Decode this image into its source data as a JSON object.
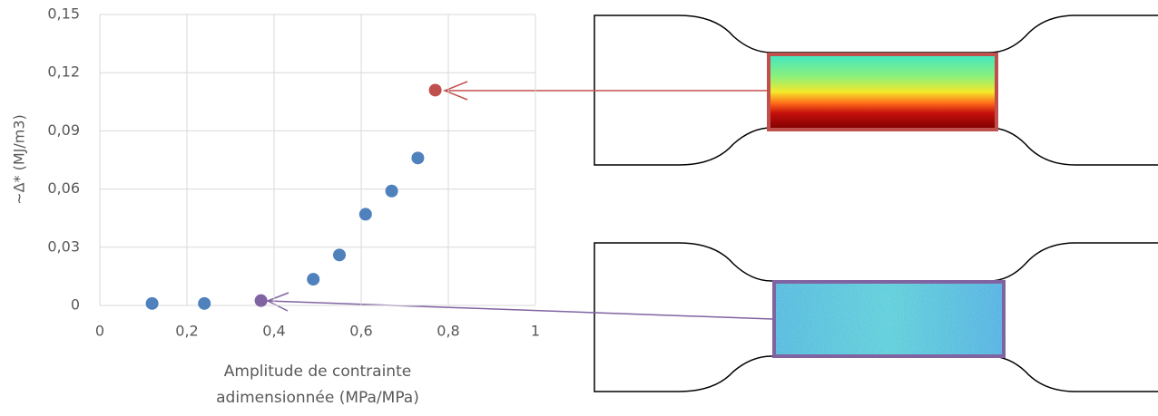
{
  "chart_data": {
    "type": "scatter",
    "y_label": "~Δ* (MJ/m3)",
    "x_label": [
      "Amplitude de contrainte",
      "adimensionnée (MPa/MPa)"
    ],
    "xlim": [
      0,
      1
    ],
    "xticks": [
      0,
      {
        "value": 0.2,
        "label": "0,2"
      },
      {
        "value": 0.4,
        "label": "0,4"
      },
      {
        "value": 0.6,
        "label": "0,6"
      },
      {
        "value": 0.8,
        "label": "0,8"
      },
      1
    ],
    "ylim": [
      0,
      0.15
    ],
    "yticks": [
      0,
      {
        "value": 0.03,
        "label": "0,03"
      },
      {
        "value": 0.06,
        "label": "0,06"
      },
      {
        "value": 0.09,
        "label": "0,09"
      },
      {
        "value": 0.12,
        "label": "0,12"
      },
      {
        "value": 0.15,
        "label": "0,15"
      }
    ],
    "grid": true,
    "series": [
      {
        "color": "#4f81bd",
        "x": [
          0.12,
          0.24,
          0.49,
          0.55,
          0.61,
          0.67,
          0.73
        ],
        "values": [
          0.001,
          0.001,
          0.0135,
          0.026,
          0.047,
          0.059,
          0.076
        ]
      },
      {
        "color": "#8064a2",
        "x": [
          0.37
        ],
        "values": [
          0.0025
        ]
      },
      {
        "color": "#c0504d",
        "x": [
          0.77
        ],
        "values": [
          0.111
        ]
      }
    ]
  }
}
